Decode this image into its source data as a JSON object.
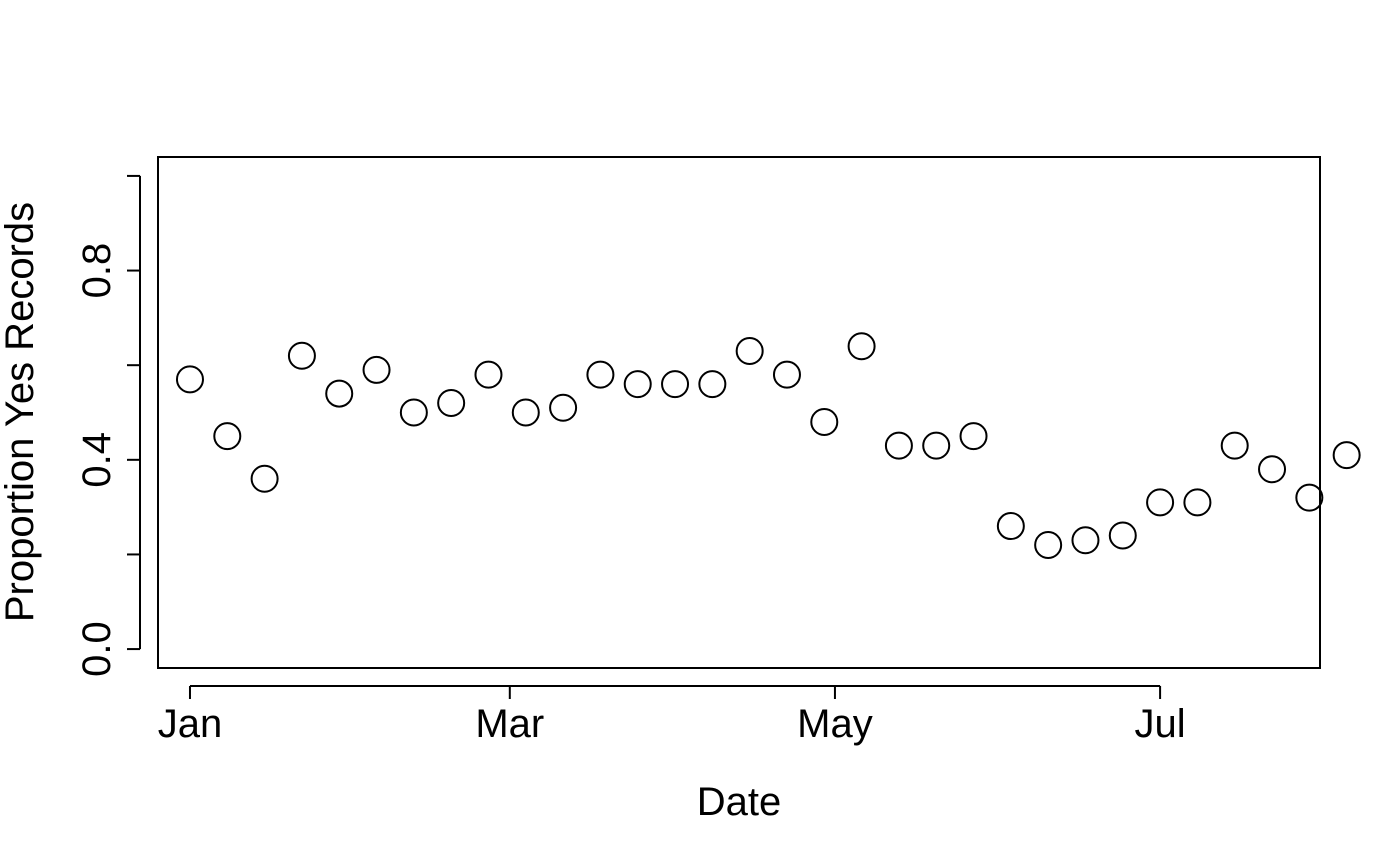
{
  "chart_data": {
    "type": "scatter",
    "title": "",
    "xlabel": "Date",
    "ylabel": "Proportion Yes Records",
    "xlim": [
      "2023-12-26",
      "2024-07-31"
    ],
    "ylim": [
      -0.04,
      1.04
    ],
    "x_ticks": [
      {
        "label": "Jan",
        "value": "2024-01-01"
      },
      {
        "label": "Mar",
        "value": "2024-03-01"
      },
      {
        "label": "May",
        "value": "2024-05-01"
      },
      {
        "label": "Jul",
        "value": "2024-07-01"
      }
    ],
    "y_ticks": [
      0.0,
      0.2,
      0.4,
      0.6,
      0.8,
      1.0
    ],
    "y_tick_labels": [
      "0.0",
      "",
      "0.4",
      "",
      "0.8",
      ""
    ],
    "grid": false,
    "marker": "open-circle",
    "series": [
      {
        "x": [
          "2024-01-01",
          "2024-01-08",
          "2024-01-15",
          "2024-01-22",
          "2024-01-29",
          "2024-02-05",
          "2024-02-12",
          "2024-02-19",
          "2024-02-26",
          "2024-03-04",
          "2024-03-11",
          "2024-03-18",
          "2024-03-25",
          "2024-04-01",
          "2024-04-08",
          "2024-04-15",
          "2024-04-22",
          "2024-04-29",
          "2024-05-06",
          "2024-05-13",
          "2024-05-20",
          "2024-05-27",
          "2024-06-03",
          "2024-06-10",
          "2024-06-17",
          "2024-06-24",
          "2024-07-01",
          "2024-07-08",
          "2024-07-15",
          "2024-07-22",
          "2024-07-29",
          "2024-08-05"
        ],
        "values": [
          0.57,
          0.45,
          0.36,
          0.62,
          0.54,
          0.59,
          0.5,
          0.52,
          0.58,
          0.5,
          0.51,
          0.58,
          0.56,
          0.56,
          0.56,
          0.63,
          0.58,
          0.48,
          0.64,
          0.43,
          0.43,
          0.45,
          0.26,
          0.22,
          0.23,
          0.24,
          0.31,
          0.31,
          0.43,
          0.38,
          0.32,
          0.41
        ]
      }
    ]
  }
}
